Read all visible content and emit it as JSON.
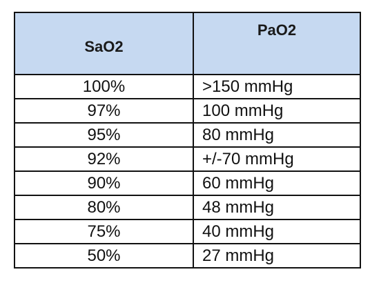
{
  "table": {
    "headers": {
      "sao2": "SaO2",
      "pao2": "PaO2"
    },
    "rows": [
      {
        "sao2": "100%",
        "pao2": ">150 mmHg"
      },
      {
        "sao2": "97%",
        "pao2": "100 mmHg"
      },
      {
        "sao2": "95%",
        "pao2": "80 mmHg"
      },
      {
        "sao2": "92%",
        "pao2": "+/-70 mmHg"
      },
      {
        "sao2": "90%",
        "pao2": "60 mmHg"
      },
      {
        "sao2": "80%",
        "pao2": "48 mmHg"
      },
      {
        "sao2": "75%",
        "pao2": "40 mmHg"
      },
      {
        "sao2": "50%",
        "pao2": "27 mmHg"
      }
    ]
  },
  "colors": {
    "header_background": "#c6d9f1",
    "border": "#111111"
  }
}
